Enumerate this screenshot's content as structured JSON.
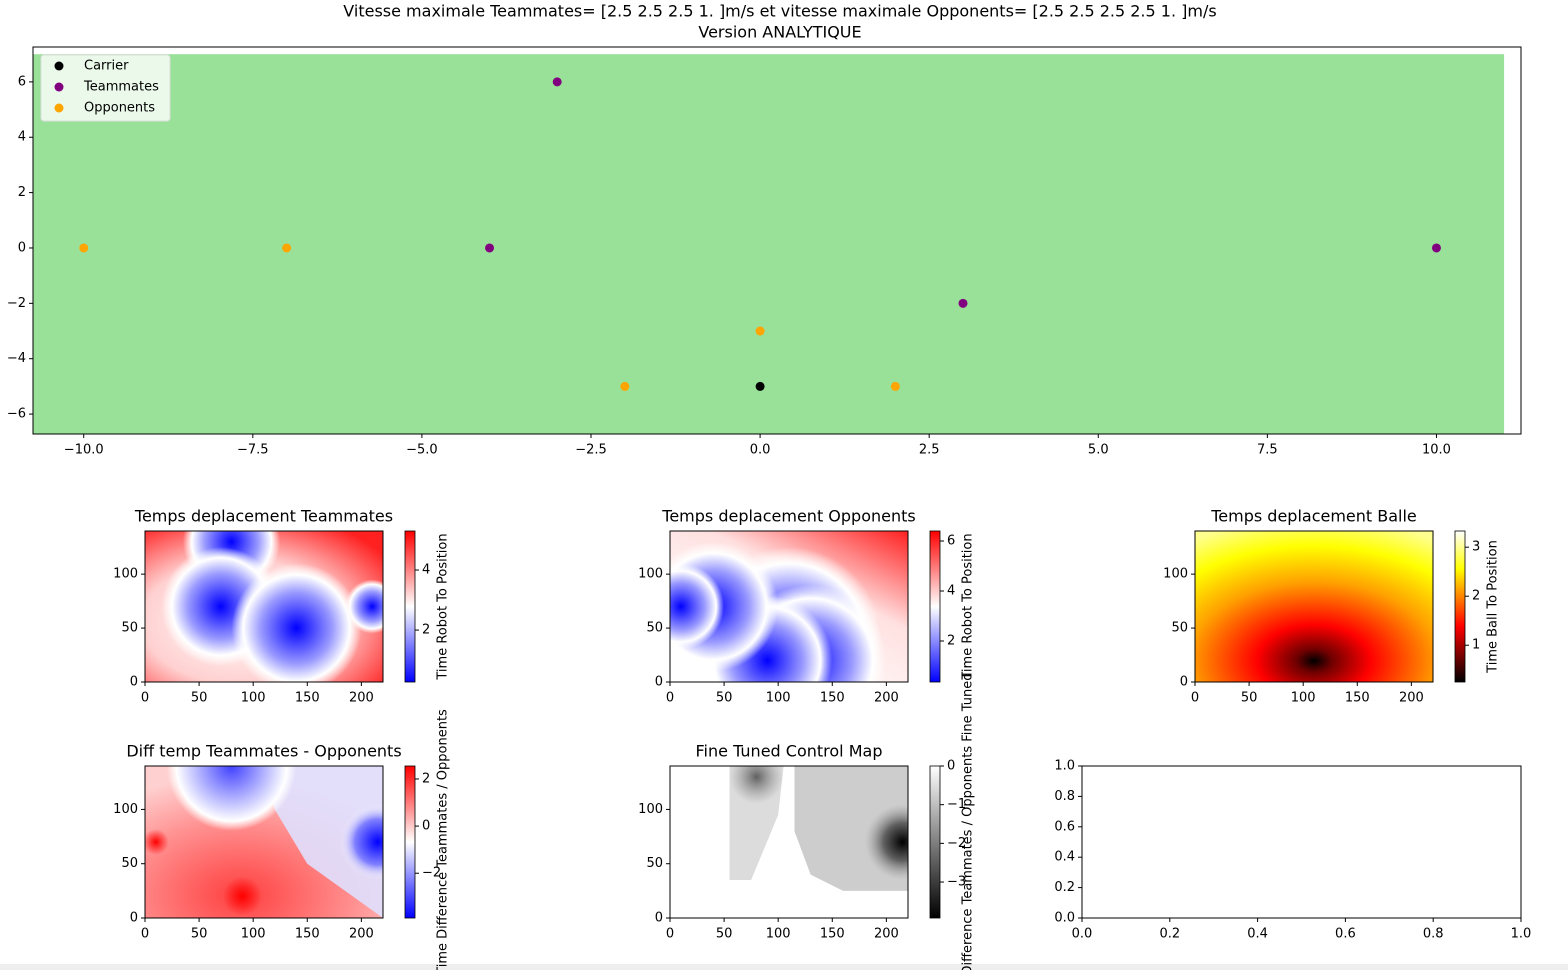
{
  "chart_data": [
    {
      "type": "scatter",
      "title": "Vitesse maximale Teammates= [2.5 2.5 2.5 1. ]m/s et vitesse maximale Opponents= [2.5 2.5 2.5 2.5 1. ]m/s",
      "subtitle": "Version ANALYTIQUE",
      "xlim": [
        -10.75,
        11.25
      ],
      "ylim": [
        -6.72,
        7.26
      ],
      "xticks": [
        {
          "value": -10,
          "label": "−10.0"
        },
        {
          "value": -7.5,
          "label": "−7.5"
        },
        {
          "value": -5,
          "label": "−5.0"
        },
        {
          "value": -2.5,
          "label": "−2.5"
        },
        {
          "value": 0,
          "label": "0.0"
        },
        2.5,
        {
          "value": 5,
          "label": "5.0"
        },
        7.5,
        {
          "value": 10,
          "label": "10.0"
        }
      ],
      "yticks": [
        {
          "value": -6,
          "label": "−6"
        },
        {
          "value": -4,
          "label": "−4"
        },
        {
          "value": -2,
          "label": "−2"
        },
        0,
        2,
        4,
        6
      ],
      "field": {
        "x": [
          -11,
          11
        ],
        "y": [
          -7,
          7
        ],
        "color": "#99e099"
      },
      "legend": "upper left",
      "series": [
        {
          "name": "Carrier",
          "color": "#000000",
          "x": [
            0
          ],
          "y": [
            -5
          ]
        },
        {
          "name": "Teammates",
          "color": "#800080",
          "x": [
            -3,
            -4,
            3,
            10
          ],
          "y": [
            6,
            0,
            -2,
            0
          ]
        },
        {
          "name": "Opponents",
          "color": "#ffa500",
          "x": [
            -10,
            -7,
            0,
            -2,
            2
          ],
          "y": [
            0,
            0,
            -3,
            -5,
            -5
          ]
        }
      ]
    },
    {
      "type": "heatmap",
      "title": "Temps deplacement Teammates",
      "xlim": [
        0,
        220
      ],
      "ylim": [
        0,
        140
      ],
      "xticks": [
        0,
        50,
        100,
        150,
        200
      ],
      "yticks": [
        0,
        50,
        100
      ],
      "colormap": "bwr",
      "colorbar_label": "Time Robot To Position",
      "clim": [
        0.27,
        5.3
      ],
      "cticks": [
        2,
        4
      ]
    },
    {
      "type": "heatmap",
      "title": "Temps deplacement Opponents",
      "xlim": [
        0,
        220
      ],
      "ylim": [
        0,
        140
      ],
      "xticks": [
        0,
        50,
        100,
        150,
        200
      ],
      "yticks": [
        0,
        50,
        100
      ],
      "colormap": "bwr",
      "colorbar_label": "Time Robot To Position",
      "clim": [
        0.36,
        6.4
      ],
      "cticks": [
        2,
        4,
        6
      ]
    },
    {
      "type": "heatmap",
      "title": "Temps deplacement Balle",
      "xlim": [
        0,
        220
      ],
      "ylim": [
        0,
        140
      ],
      "xticks": [
        0,
        50,
        100,
        150,
        200
      ],
      "yticks": [
        0,
        50,
        100
      ],
      "colormap": "hot",
      "colorbar_label": "Time Ball To Position",
      "clim": [
        0.25,
        3.33
      ],
      "cticks": [
        1,
        2,
        3
      ]
    },
    {
      "type": "heatmap",
      "title": "Diff temp Teammates - Opponents",
      "xlim": [
        0,
        220
      ],
      "ylim": [
        0,
        140
      ],
      "xticks": [
        0,
        50,
        100,
        150,
        200
      ],
      "yticks": [
        0,
        50,
        100
      ],
      "colormap": "bwr",
      "colorbar_label": "Time Difference Teammates / Opponents",
      "clim": [
        -3.9,
        2.55
      ],
      "cticks": [
        {
          "value": -2,
          "label": "−2"
        },
        0,
        2
      ]
    },
    {
      "type": "heatmap",
      "title": "Fine Tuned Control Map",
      "xlim": [
        0,
        220
      ],
      "ylim": [
        0,
        140
      ],
      "xticks": [
        0,
        50,
        100,
        150,
        200
      ],
      "yticks": [
        0,
        50,
        100
      ],
      "colormap": "gray",
      "colorbar_label": "Time Difference Teammates / Opponents Fine Tuned",
      "clim": [
        -3.93,
        0
      ],
      "cticks": [
        {
          "value": -3,
          "label": "−3"
        },
        {
          "value": -2,
          "label": "−2"
        },
        {
          "value": -1,
          "label": "−1"
        },
        0
      ]
    },
    {
      "type": "blank",
      "xlim": [
        0,
        1
      ],
      "ylim": [
        0,
        1
      ],
      "xticks": [
        {
          "value": 0,
          "label": "0.0"
        },
        {
          "value": 0.2,
          "label": "0.2"
        },
        {
          "value": 0.4,
          "label": "0.4"
        },
        {
          "value": 0.6,
          "label": "0.6"
        },
        {
          "value": 0.8,
          "label": "0.8"
        },
        {
          "value": 1,
          "label": "1.0"
        }
      ],
      "yticks": [
        {
          "value": 0,
          "label": "0.0"
        },
        {
          "value": 0.2,
          "label": "0.2"
        },
        {
          "value": 0.4,
          "label": "0.4"
        },
        {
          "value": 0.6,
          "label": "0.6"
        },
        {
          "value": 0.8,
          "label": "0.8"
        },
        {
          "value": 1,
          "label": "1.0"
        }
      ]
    }
  ]
}
